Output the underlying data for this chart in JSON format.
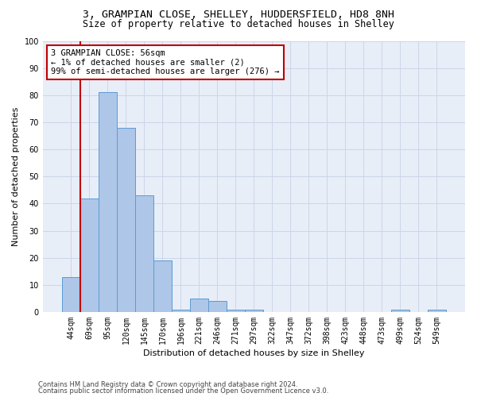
{
  "title1": "3, GRAMPIAN CLOSE, SHELLEY, HUDDERSFIELD, HD8 8NH",
  "title2": "Size of property relative to detached houses in Shelley",
  "xlabel": "Distribution of detached houses by size in Shelley",
  "ylabel": "Number of detached properties",
  "categories": [
    "44sqm",
    "69sqm",
    "95sqm",
    "120sqm",
    "145sqm",
    "170sqm",
    "196sqm",
    "221sqm",
    "246sqm",
    "271sqm",
    "297sqm",
    "322sqm",
    "347sqm",
    "372sqm",
    "398sqm",
    "423sqm",
    "448sqm",
    "473sqm",
    "499sqm",
    "524sqm",
    "549sqm"
  ],
  "values": [
    13,
    42,
    81,
    68,
    43,
    19,
    1,
    5,
    4,
    1,
    1,
    0,
    0,
    0,
    0,
    0,
    0,
    0,
    1,
    0,
    1
  ],
  "bar_color": "#aec6e8",
  "bar_edge_color": "#5b9bd5",
  "highlight_color": "#c00000",
  "annotation_line": "3 GRAMPIAN CLOSE: 56sqm",
  "annotation_line2": "← 1% of detached houses are smaller (2)",
  "annotation_line3": "99% of semi-detached houses are larger (276) →",
  "annotation_box_color": "#ffffff",
  "annotation_box_edge_color": "#c00000",
  "ylim": [
    0,
    100
  ],
  "yticks": [
    0,
    10,
    20,
    30,
    40,
    50,
    60,
    70,
    80,
    90,
    100
  ],
  "grid_color": "#ccd6e8",
  "background_color": "#e8eef8",
  "footer1": "Contains HM Land Registry data © Crown copyright and database right 2024.",
  "footer2": "Contains public sector information licensed under the Open Government Licence v3.0.",
  "title_fontsize": 9.5,
  "subtitle_fontsize": 8.5,
  "tick_fontsize": 7,
  "ylabel_fontsize": 8,
  "xlabel_fontsize": 8,
  "annotation_fontsize": 7.5,
  "footer_fontsize": 6
}
